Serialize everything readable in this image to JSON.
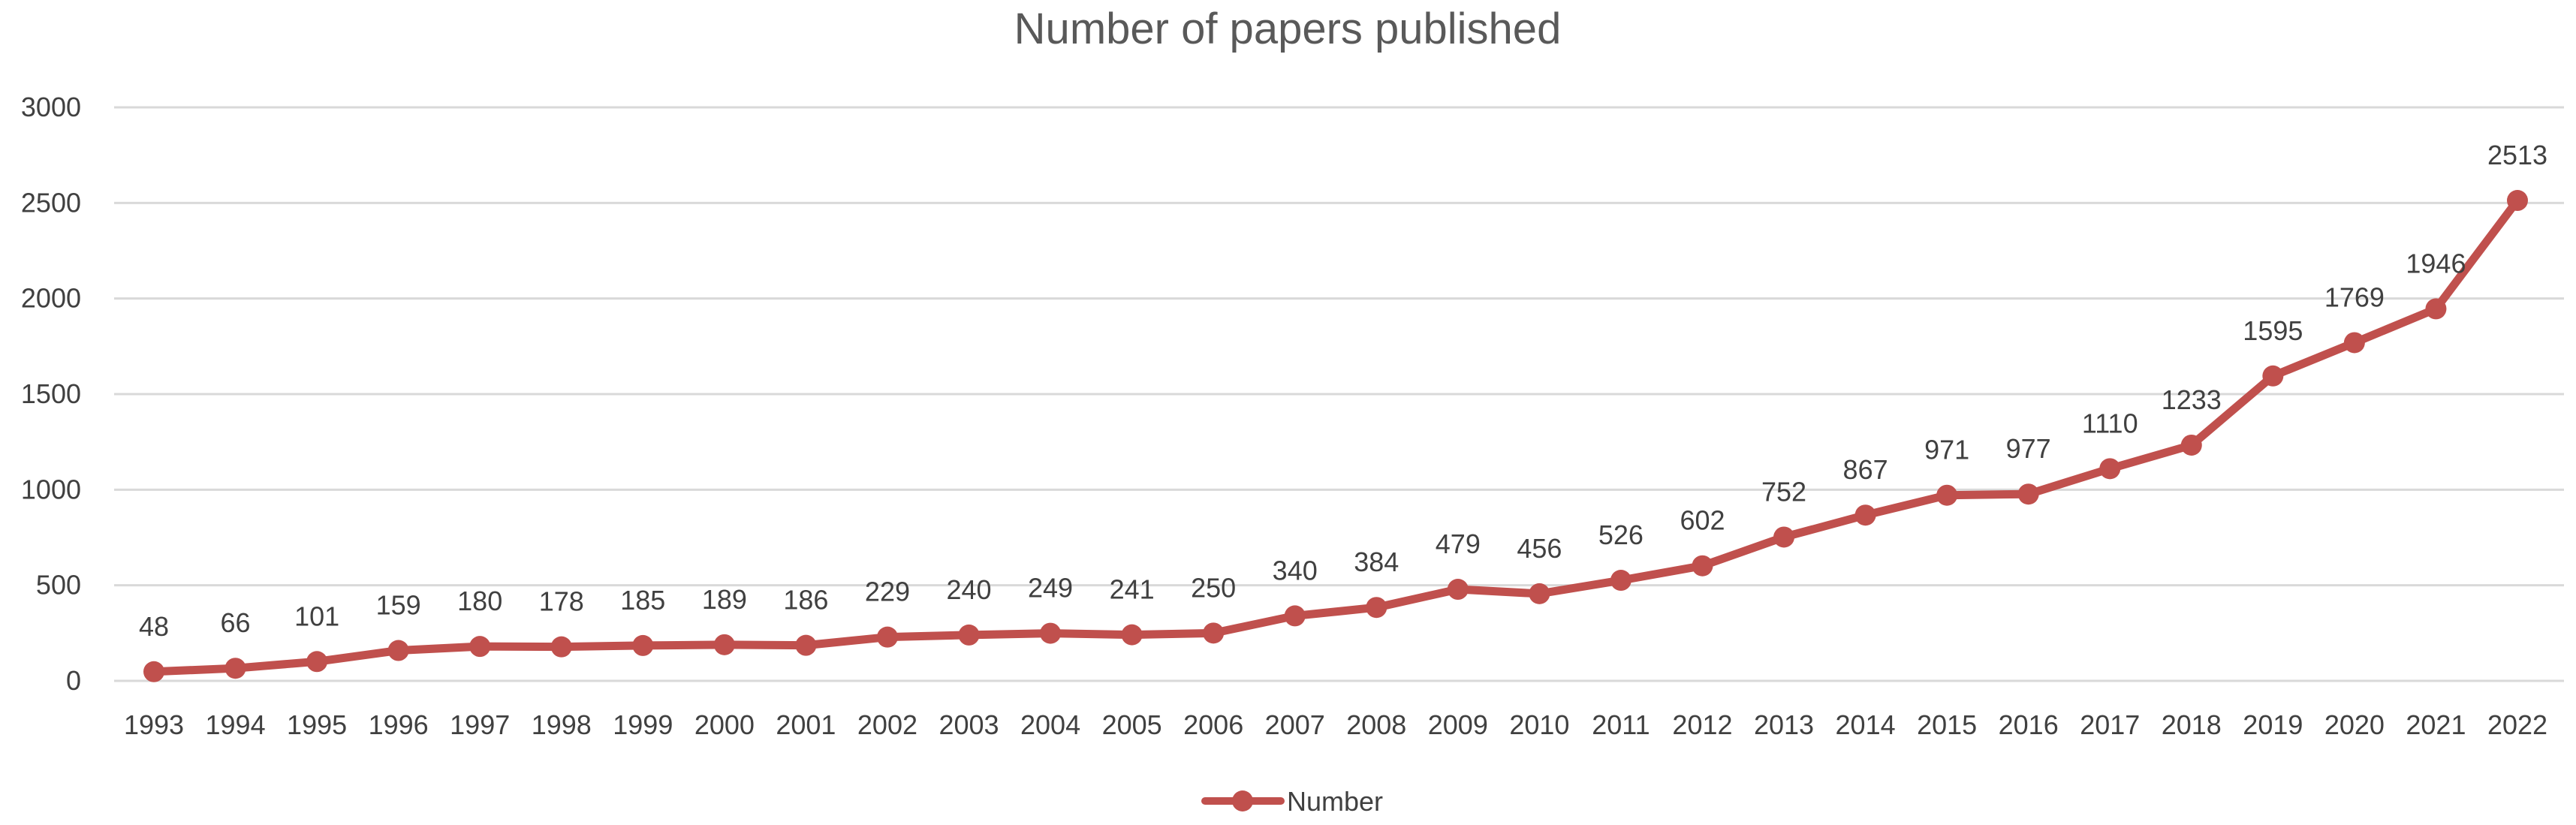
{
  "chart_data": {
    "type": "line",
    "title": "Number of papers published",
    "xlabel": "",
    "ylabel": "",
    "x": [
      "1993",
      "1994",
      "1995",
      "1996",
      "1997",
      "1998",
      "1999",
      "2000",
      "2001",
      "2002",
      "2003",
      "2004",
      "2005",
      "2006",
      "2007",
      "2008",
      "2009",
      "2010",
      "2011",
      "2012",
      "2013",
      "2014",
      "2015",
      "2016",
      "2017",
      "2018",
      "2019",
      "2020",
      "2021",
      "2022"
    ],
    "series": [
      {
        "name": "Number",
        "color": "#c0504d",
        "values": [
          48,
          66,
          101,
          159,
          180,
          178,
          185,
          189,
          186,
          229,
          240,
          249,
          241,
          250,
          340,
          384,
          479,
          456,
          526,
          602,
          752,
          867,
          971,
          977,
          1110,
          1233,
          1595,
          1769,
          1946,
          2513
        ]
      }
    ],
    "ylim": [
      0,
      3000
    ],
    "yticks": [
      0,
      500,
      1000,
      1500,
      2000,
      2500,
      3000
    ],
    "grid": true,
    "data_labels": true,
    "legend_position": "bottom"
  }
}
